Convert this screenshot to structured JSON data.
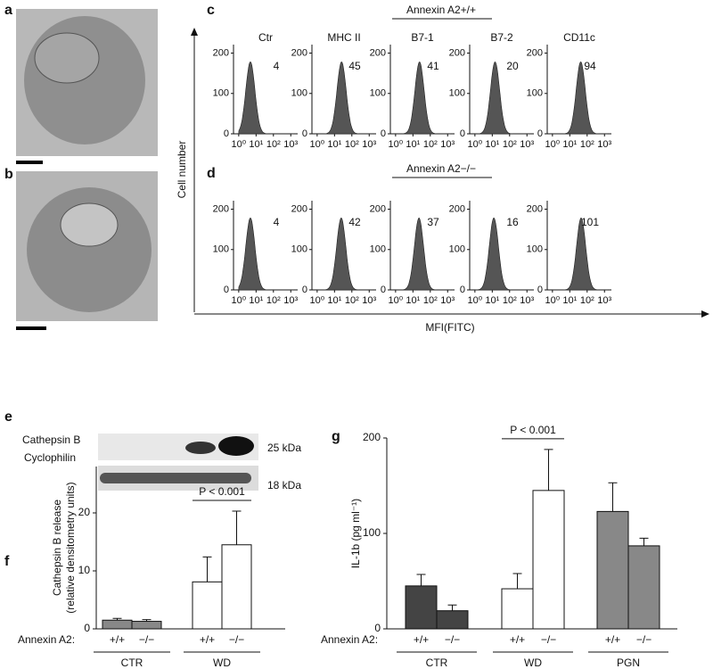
{
  "panel_labels": [
    "a",
    "b",
    "c",
    "d",
    "e",
    "f",
    "g"
  ],
  "blot": {
    "bands": [
      "Cathepsin B",
      "Cyclophilin"
    ],
    "sizes": [
      "25 kDa",
      "18 kDa"
    ]
  },
  "chart_data": [
    {
      "type": "histogram",
      "y_label": "Cell number",
      "x_label": "MFI(FITC)",
      "categories": [
        "Ctr",
        "MHC II",
        "B7-1",
        "B7-2",
        "CD11c"
      ],
      "rows": [
        {
          "header": "Annexin A2+/+",
          "mfi": [
            4,
            45,
            41,
            20,
            94
          ]
        },
        {
          "header": "Annexin A2−/−",
          "mfi": [
            4,
            42,
            37,
            16,
            101
          ]
        }
      ],
      "log_x": true,
      "xlim": [
        0.5,
        2500
      ],
      "xticks": [
        {
          "value": 1,
          "label": "10⁰"
        },
        {
          "value": 10,
          "label": "10¹"
        },
        {
          "value": 100,
          "label": "10²"
        },
        {
          "value": 1000,
          "label": "10³"
        }
      ],
      "ylim": [
        0,
        210
      ],
      "yticks": [
        0,
        100,
        200
      ],
      "color": "#555555"
    },
    {
      "type": "bar",
      "y_label": "Cathepsin B release",
      "y_label_2": "(relative densitometry units)",
      "row_label": "Annexin A2:",
      "categories": [
        "+/+",
        "−/−"
      ],
      "series": [
        {
          "name": "CTR",
          "color": "#888888",
          "values": [
            1.5,
            1.3
          ],
          "errors": [
            0.3,
            0.3
          ]
        },
        {
          "name": "WD",
          "color": "#ffffff",
          "values": [
            8.1,
            14.5
          ],
          "errors": [
            4.3,
            5.8
          ]
        }
      ],
      "ylim": [
        0,
        28
      ],
      "yticks": [
        0,
        10,
        20
      ],
      "annotation": {
        "text": "P < 0.001",
        "series": 1
      }
    },
    {
      "type": "bar",
      "y_label": "IL-1b (pg ml⁻¹)",
      "row_label": "Annexin A2:",
      "categories": [
        "+/+",
        "−/−"
      ],
      "series": [
        {
          "name": "CTR",
          "color": "#444444",
          "values": [
            45,
            19
          ],
          "errors": [
            12,
            6
          ]
        },
        {
          "name": "WD",
          "color": "#ffffff",
          "values": [
            42,
            145
          ],
          "errors": [
            16,
            43
          ]
        },
        {
          "name": "PGN",
          "color": "#888888",
          "values": [
            123,
            87
          ],
          "errors": [
            30,
            8
          ]
        }
      ],
      "ylim": [
        0,
        200
      ],
      "yticks": [
        0,
        100,
        200
      ],
      "annotation": {
        "text": "P < 0.001",
        "series": 1
      }
    }
  ]
}
